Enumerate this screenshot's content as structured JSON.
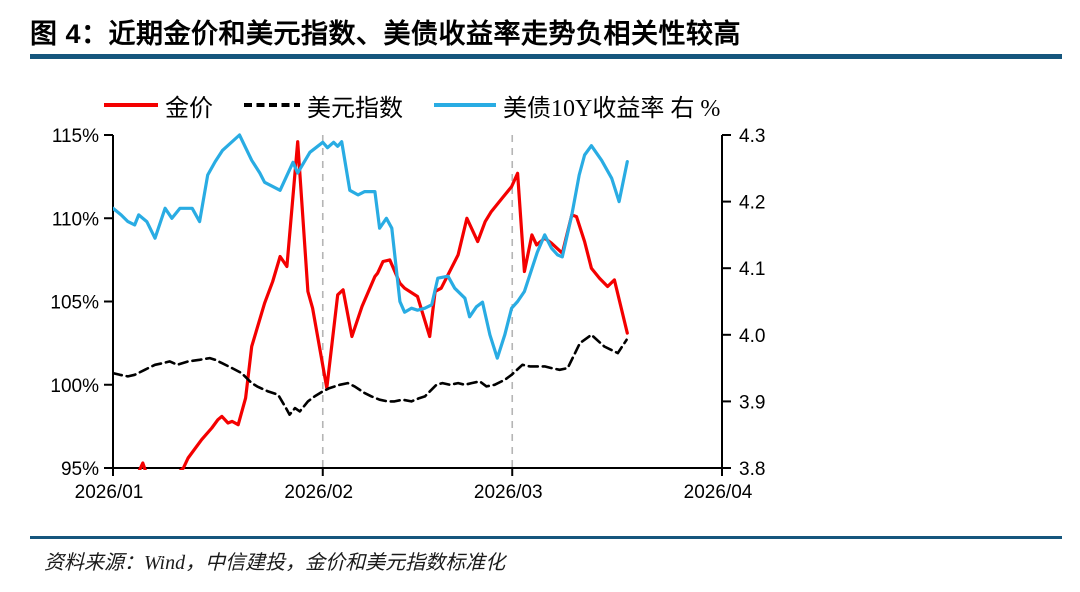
{
  "figure": {
    "title": "图 4：近期金价和美元指数、美债收益率走势负相关性较高",
    "source": "资料来源：Wind，中信建投，金价和美元指数标准化"
  },
  "colors": {
    "title_bar": "#15567d",
    "separator": "#15567d",
    "gridline": "#b5b5b5",
    "axis": "#000000",
    "gold": "#f40000",
    "dxy": "#000000",
    "ust10y": "#29ace3"
  },
  "chart_data": {
    "type": "line",
    "title": "图 4：近期金价和美元指数、美债收益率走势负相关性较高",
    "legend_position": "top",
    "grid": "vertical-dashed-only",
    "x_axis": {
      "start_date": "2026-01-01",
      "unit": "day_offset_from_start",
      "range_days": [
        0,
        90
      ],
      "tick_days": [
        0,
        31,
        59,
        90
      ],
      "tick_labels": [
        "2026/01",
        "2026/02",
        "2026/03",
        "2026/04"
      ],
      "gridline_days": [
        31,
        59
      ]
    },
    "y_left": {
      "range": [
        95,
        115
      ],
      "tick_values": [
        115,
        110,
        105,
        100,
        95
      ],
      "ticks": [
        "115%",
        "110%",
        "105%",
        "100%",
        "95%"
      ]
    },
    "y_right": {
      "range": [
        3.8,
        4.3
      ],
      "tick_values": [
        4.3,
        4.2,
        4.1,
        4.0,
        3.9,
        3.8
      ],
      "ticks": [
        "4.3",
        "4.2",
        "4.1",
        "4.0",
        "3.9",
        "3.8"
      ]
    },
    "series": [
      {
        "name": "金价",
        "axis": "left",
        "style": "solid",
        "color": "#f40000",
        "width": 3.2,
        "points": [
          [
            3.6,
            94.6
          ],
          [
            4.4,
            95.3
          ],
          [
            5.0,
            94.6
          ],
          [
            9.0,
            94.5
          ],
          [
            10.4,
            95.0
          ],
          [
            11.1,
            95.6
          ],
          [
            13.1,
            96.7
          ],
          [
            14.6,
            97.4
          ],
          [
            15.5,
            97.9
          ],
          [
            16.1,
            98.1
          ],
          [
            17.0,
            97.7
          ],
          [
            17.6,
            97.8
          ],
          [
            18.5,
            97.6
          ],
          [
            19.6,
            99.2
          ],
          [
            20.5,
            102.3
          ],
          [
            22.4,
            104.9
          ],
          [
            23.6,
            106.2
          ],
          [
            24.7,
            107.7
          ],
          [
            25.7,
            107.1
          ],
          [
            27.3,
            114.6
          ],
          [
            28.8,
            105.6
          ],
          [
            29.5,
            104.6
          ],
          [
            31.6,
            99.8
          ],
          [
            33.2,
            105.4
          ],
          [
            34.0,
            105.7
          ],
          [
            35.3,
            102.9
          ],
          [
            36.8,
            104.7
          ],
          [
            38.7,
            106.5
          ],
          [
            39.1,
            106.7
          ],
          [
            39.9,
            107.4
          ],
          [
            40.9,
            107.5
          ],
          [
            42.4,
            106.1
          ],
          [
            43.1,
            105.8
          ],
          [
            45.0,
            105.3
          ],
          [
            46.8,
            102.9
          ],
          [
            47.6,
            105.6
          ],
          [
            48.5,
            105.8
          ],
          [
            51.0,
            107.8
          ],
          [
            52.3,
            110.0
          ],
          [
            53.9,
            108.6
          ],
          [
            55.0,
            109.8
          ],
          [
            55.9,
            110.4
          ],
          [
            57.5,
            111.2
          ],
          [
            58.9,
            111.9
          ],
          [
            59.8,
            112.7
          ],
          [
            60.8,
            106.8
          ],
          [
            61.9,
            109.0
          ],
          [
            62.6,
            108.4
          ],
          [
            63.8,
            108.8
          ],
          [
            64.8,
            108.5
          ],
          [
            66.4,
            107.9
          ],
          [
            67.8,
            110.2
          ],
          [
            68.5,
            110.1
          ],
          [
            69.7,
            108.6
          ],
          [
            70.7,
            107.0
          ],
          [
            71.9,
            106.4
          ],
          [
            73.1,
            105.9
          ],
          [
            74.1,
            106.3
          ],
          [
            76.0,
            103.1
          ]
        ]
      },
      {
        "name": "美元指数",
        "axis": "left",
        "style": "dashed",
        "color": "#000000",
        "width": 2.6,
        "points": [
          [
            0,
            100.7
          ],
          [
            1.0,
            100.6
          ],
          [
            2.2,
            100.5
          ],
          [
            3.2,
            100.6
          ],
          [
            4.7,
            100.9
          ],
          [
            6.2,
            101.2
          ],
          [
            7.4,
            101.3
          ],
          [
            8.4,
            101.4
          ],
          [
            9.5,
            101.2
          ],
          [
            11.1,
            101.4
          ],
          [
            12.8,
            101.5
          ],
          [
            14.3,
            101.6
          ],
          [
            15.1,
            101.5
          ],
          [
            16.1,
            101.3
          ],
          [
            17.6,
            101.0
          ],
          [
            19.0,
            100.7
          ],
          [
            20.5,
            100.1
          ],
          [
            21.3,
            99.9
          ],
          [
            22.9,
            99.6
          ],
          [
            24.4,
            99.4
          ],
          [
            25.7,
            98.5
          ],
          [
            26.1,
            98.2
          ],
          [
            26.9,
            98.6
          ],
          [
            27.6,
            98.4
          ],
          [
            28.8,
            99.0
          ],
          [
            29.8,
            99.3
          ],
          [
            31.0,
            99.6
          ],
          [
            32.0,
            99.8
          ],
          [
            33.5,
            100.0
          ],
          [
            34.7,
            100.1
          ],
          [
            35.7,
            99.9
          ],
          [
            37.2,
            99.5
          ],
          [
            38.2,
            99.3
          ],
          [
            39.4,
            99.1
          ],
          [
            40.6,
            99.0
          ],
          [
            41.6,
            99.0
          ],
          [
            42.8,
            99.1
          ],
          [
            44.1,
            99.0
          ],
          [
            45.3,
            99.2
          ],
          [
            46.1,
            99.3
          ],
          [
            47.8,
            100.0
          ],
          [
            48.7,
            100.1
          ],
          [
            49.8,
            100.0
          ],
          [
            51.0,
            100.1
          ],
          [
            52.0,
            100.0
          ],
          [
            53.0,
            100.1
          ],
          [
            54.2,
            100.2
          ],
          [
            55.2,
            99.9
          ],
          [
            56.4,
            100.0
          ],
          [
            57.9,
            100.3
          ],
          [
            58.9,
            100.6
          ],
          [
            60.5,
            101.2
          ],
          [
            61.6,
            101.1
          ],
          [
            62.8,
            101.1
          ],
          [
            63.8,
            101.1
          ],
          [
            64.8,
            101.0
          ],
          [
            66.0,
            100.9
          ],
          [
            67.2,
            101.0
          ],
          [
            69.0,
            102.5
          ],
          [
            70.7,
            103.0
          ],
          [
            72.6,
            102.3
          ],
          [
            74.6,
            101.9
          ],
          [
            75.9,
            102.7
          ]
        ]
      },
      {
        "name": "美债10Y收益率 右 %",
        "axis": "right",
        "style": "solid",
        "color": "#29ace3",
        "width": 3.2,
        "points": [
          [
            0,
            4.19
          ],
          [
            1.2,
            4.18
          ],
          [
            2.2,
            4.17
          ],
          [
            3.2,
            4.165
          ],
          [
            3.8,
            4.18
          ],
          [
            5.0,
            4.17
          ],
          [
            6.2,
            4.145
          ],
          [
            7.7,
            4.19
          ],
          [
            8.7,
            4.175
          ],
          [
            9.9,
            4.19
          ],
          [
            11.7,
            4.19
          ],
          [
            12.8,
            4.17
          ],
          [
            14.0,
            4.24
          ],
          [
            15.1,
            4.26
          ],
          [
            16.2,
            4.277
          ],
          [
            18.7,
            4.3
          ],
          [
            20.5,
            4.262
          ],
          [
            21.7,
            4.243
          ],
          [
            22.4,
            4.229
          ],
          [
            24.7,
            4.217
          ],
          [
            26.6,
            4.259
          ],
          [
            27.3,
            4.243
          ],
          [
            29.1,
            4.274
          ],
          [
            31.0,
            4.289
          ],
          [
            31.7,
            4.281
          ],
          [
            32.6,
            4.289
          ],
          [
            33.2,
            4.283
          ],
          [
            33.8,
            4.29
          ],
          [
            35.0,
            4.217
          ],
          [
            36.2,
            4.21
          ],
          [
            37.2,
            4.215
          ],
          [
            38.7,
            4.215
          ],
          [
            39.4,
            4.16
          ],
          [
            40.4,
            4.175
          ],
          [
            41.2,
            4.16
          ],
          [
            42.4,
            4.05
          ],
          [
            43.1,
            4.034
          ],
          [
            44.1,
            4.04
          ],
          [
            45.0,
            4.037
          ],
          [
            46.1,
            4.04
          ],
          [
            47.1,
            4.045
          ],
          [
            48.0,
            4.085
          ],
          [
            49.5,
            4.088
          ],
          [
            50.5,
            4.07
          ],
          [
            52.0,
            4.055
          ],
          [
            52.7,
            4.027
          ],
          [
            53.7,
            4.042
          ],
          [
            54.6,
            4.049
          ],
          [
            55.7,
            4.0
          ],
          [
            56.8,
            3.965
          ],
          [
            57.9,
            4.0
          ],
          [
            58.9,
            4.04
          ],
          [
            59.8,
            4.05
          ],
          [
            60.8,
            4.065
          ],
          [
            62.7,
            4.124
          ],
          [
            63.8,
            4.15
          ],
          [
            64.8,
            4.13
          ],
          [
            65.7,
            4.12
          ],
          [
            66.4,
            4.117
          ],
          [
            67.8,
            4.18
          ],
          [
            68.9,
            4.24
          ],
          [
            69.7,
            4.27
          ],
          [
            70.7,
            4.284
          ],
          [
            72.2,
            4.262
          ],
          [
            73.7,
            4.235
          ],
          [
            74.8,
            4.2
          ],
          [
            76.0,
            4.26
          ]
        ]
      }
    ]
  }
}
